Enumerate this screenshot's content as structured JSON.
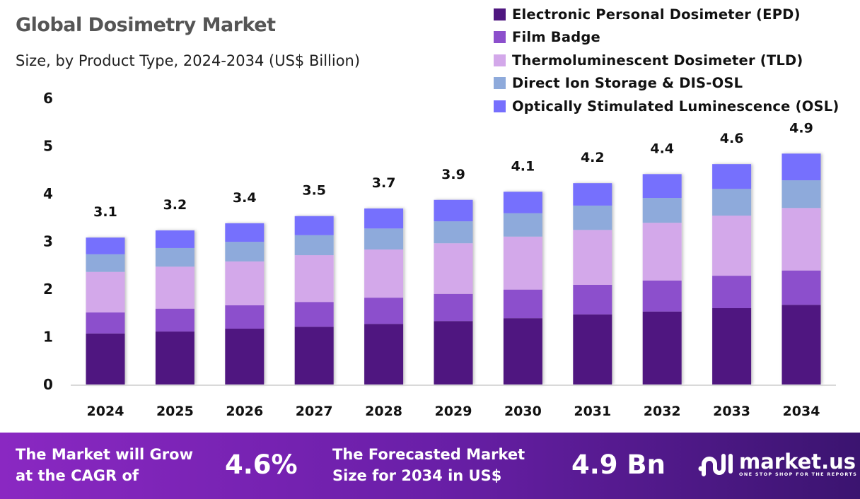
{
  "chart_data": {
    "type": "bar",
    "stacked": true,
    "title": "Global Dosimetry Market",
    "subtitle": "Size, by Product Type, 2024-2034 (US$ Billion)",
    "xlabel": "",
    "ylabel": "",
    "ylim": [
      0,
      6
    ],
    "yticks": [
      "0",
      "1",
      "2",
      "3",
      "4",
      "5",
      "6"
    ],
    "grid": false,
    "legend_position": "top-right",
    "categories": [
      "2024",
      "2025",
      "2026",
      "2027",
      "2028",
      "2029",
      "2030",
      "2031",
      "2032",
      "2033",
      "2034"
    ],
    "totals_labels": [
      "3.1",
      "3.2",
      "3.4",
      "3.5",
      "3.7",
      "3.9",
      "4.1",
      "4.2",
      "4.4",
      "4.6",
      "4.9"
    ],
    "series": [
      {
        "name": "Electronic Personal Dosimeter (EPD)",
        "color": "#4f1780",
        "values": [
          1.07,
          1.11,
          1.17,
          1.21,
          1.27,
          1.33,
          1.39,
          1.47,
          1.53,
          1.6,
          1.67
        ]
      },
      {
        "name": "Film Badge",
        "color": "#8c4fcc",
        "values": [
          0.44,
          0.48,
          0.49,
          0.52,
          0.55,
          0.57,
          0.6,
          0.62,
          0.65,
          0.68,
          0.72
        ]
      },
      {
        "name": "Thermoluminescent Dosimeter (TLD)",
        "color": "#d3a8ea",
        "values": [
          0.85,
          0.88,
          0.92,
          0.98,
          1.01,
          1.06,
          1.11,
          1.15,
          1.21,
          1.26,
          1.31
        ]
      },
      {
        "name": "Direct Ion Storage & DIS-OSL",
        "color": "#8eaadb",
        "values": [
          0.37,
          0.39,
          0.41,
          0.42,
          0.44,
          0.46,
          0.49,
          0.51,
          0.52,
          0.56,
          0.58
        ]
      },
      {
        "name": "Optically Stimulated Luminescence (OSL)",
        "color": "#766ffd",
        "values": [
          0.35,
          0.37,
          0.39,
          0.4,
          0.42,
          0.45,
          0.45,
          0.47,
          0.5,
          0.52,
          0.56
        ]
      }
    ]
  },
  "footer": {
    "cagr_label_line1": "The Market will Grow",
    "cagr_label_line2": "at the CAGR of",
    "cagr_value": "4.6%",
    "forecast_label_line1": "The Forecasted Market",
    "forecast_label_line2": "Size for 2034 in US$",
    "forecast_value": "4.9 Bn",
    "brand_name": "market.us",
    "brand_tagline": "ONE STOP SHOP FOR THE REPORTS"
  }
}
